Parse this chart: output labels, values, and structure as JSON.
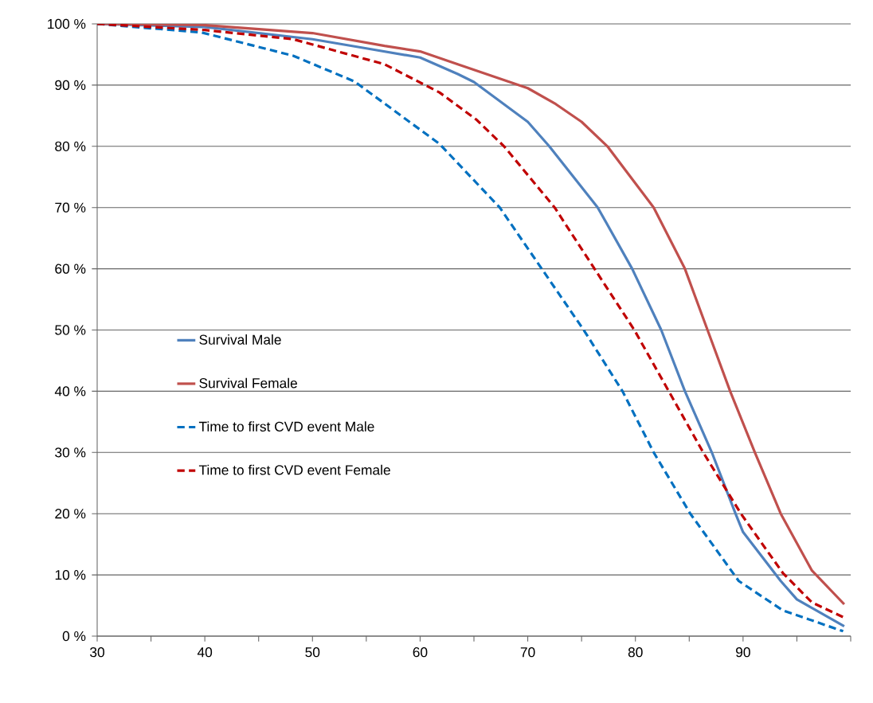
{
  "chart_data": {
    "type": "line",
    "xlim": [
      30,
      100
    ],
    "xticks": [
      30,
      {
        "value": 35,
        "label": null
      },
      40,
      {
        "value": 45,
        "label": null
      },
      50,
      {
        "value": 55,
        "label": null
      },
      60,
      {
        "value": 65,
        "label": null
      },
      70,
      {
        "value": 75,
        "label": null
      },
      80,
      {
        "value": 85,
        "label": null
      },
      90,
      {
        "value": 95,
        "label": null
      },
      {
        "value": 100,
        "label": null
      }
    ],
    "ylim": [
      0,
      100
    ],
    "yticks": [
      {
        "value": 0,
        "label": "0 %"
      },
      {
        "value": 10,
        "label": "10 %"
      },
      {
        "value": 20,
        "label": "20 %"
      },
      {
        "value": 30,
        "label": "30 %"
      },
      {
        "value": 40,
        "label": "40 %"
      },
      {
        "value": 50,
        "label": "50 %"
      },
      {
        "value": 60,
        "label": "60 %"
      },
      {
        "value": 70,
        "label": "70 %"
      },
      {
        "value": 80,
        "label": "80 %"
      },
      {
        "value": 90,
        "label": "90 %"
      },
      {
        "value": 100,
        "label": "100 %"
      }
    ],
    "grid": "y",
    "legend": "left",
    "series": [
      {
        "name": "Survival Male",
        "color": "#4f81bd",
        "line_style": "solid",
        "x": [
          30,
          40,
          50,
          55,
          60,
          63.5,
          65,
          70,
          72,
          76.5,
          79.7,
          82.4,
          84.6,
          87.1,
          89.3,
          90,
          93.5,
          95,
          99.4
        ],
        "values": [
          100,
          99.5,
          97.5,
          96,
          94.5,
          91.8,
          90.5,
          84,
          80,
          70,
          60,
          50,
          40,
          30,
          20,
          17,
          9,
          6,
          1.6
        ]
      },
      {
        "name": "Survival Female",
        "color": "#c0504d",
        "line_style": "solid",
        "x": [
          30,
          40,
          50,
          56.7,
          60,
          63.5,
          70,
          72.6,
          75,
          77.4,
          81.7,
          84.6,
          86.7,
          88.8,
          91.1,
          93.5,
          96.4,
          99.4
        ],
        "values": [
          100,
          99.8,
          98.5,
          96.4,
          95.5,
          93.4,
          89.5,
          86.9,
          84,
          80,
          70,
          60,
          50,
          40,
          30,
          20,
          10.7,
          5.2
        ]
      },
      {
        "name": "Time to first  CVD event Male",
        "color": "#0070c0",
        "line_style": "dashed",
        "x": [
          30,
          39.7,
          48.2,
          53.9,
          61.8,
          67.4,
          71.3,
          75.2,
          78.8,
          81.7,
          85.1,
          89.6,
          93.7,
          99.3
        ],
        "values": [
          100,
          98.6,
          94.8,
          90.6,
          80.4,
          70,
          60,
          50,
          40,
          30,
          20,
          9,
          4.2,
          0.8
        ]
      },
      {
        "name": "Time to first  CVD event Female",
        "color": "#c00000",
        "line_style": "dashed",
        "x": [
          30,
          40,
          48.2,
          56.7,
          61.8,
          65.2,
          67.8,
          72.5,
          76.2,
          79.9,
          83.1,
          86.3,
          89.8,
          93.7,
          96.4,
          99.3
        ],
        "values": [
          100,
          99,
          97.5,
          93.4,
          88.8,
          84.4,
          80,
          70,
          60,
          50,
          40,
          30,
          20,
          10.3,
          5.5,
          3.1
        ]
      }
    ]
  }
}
